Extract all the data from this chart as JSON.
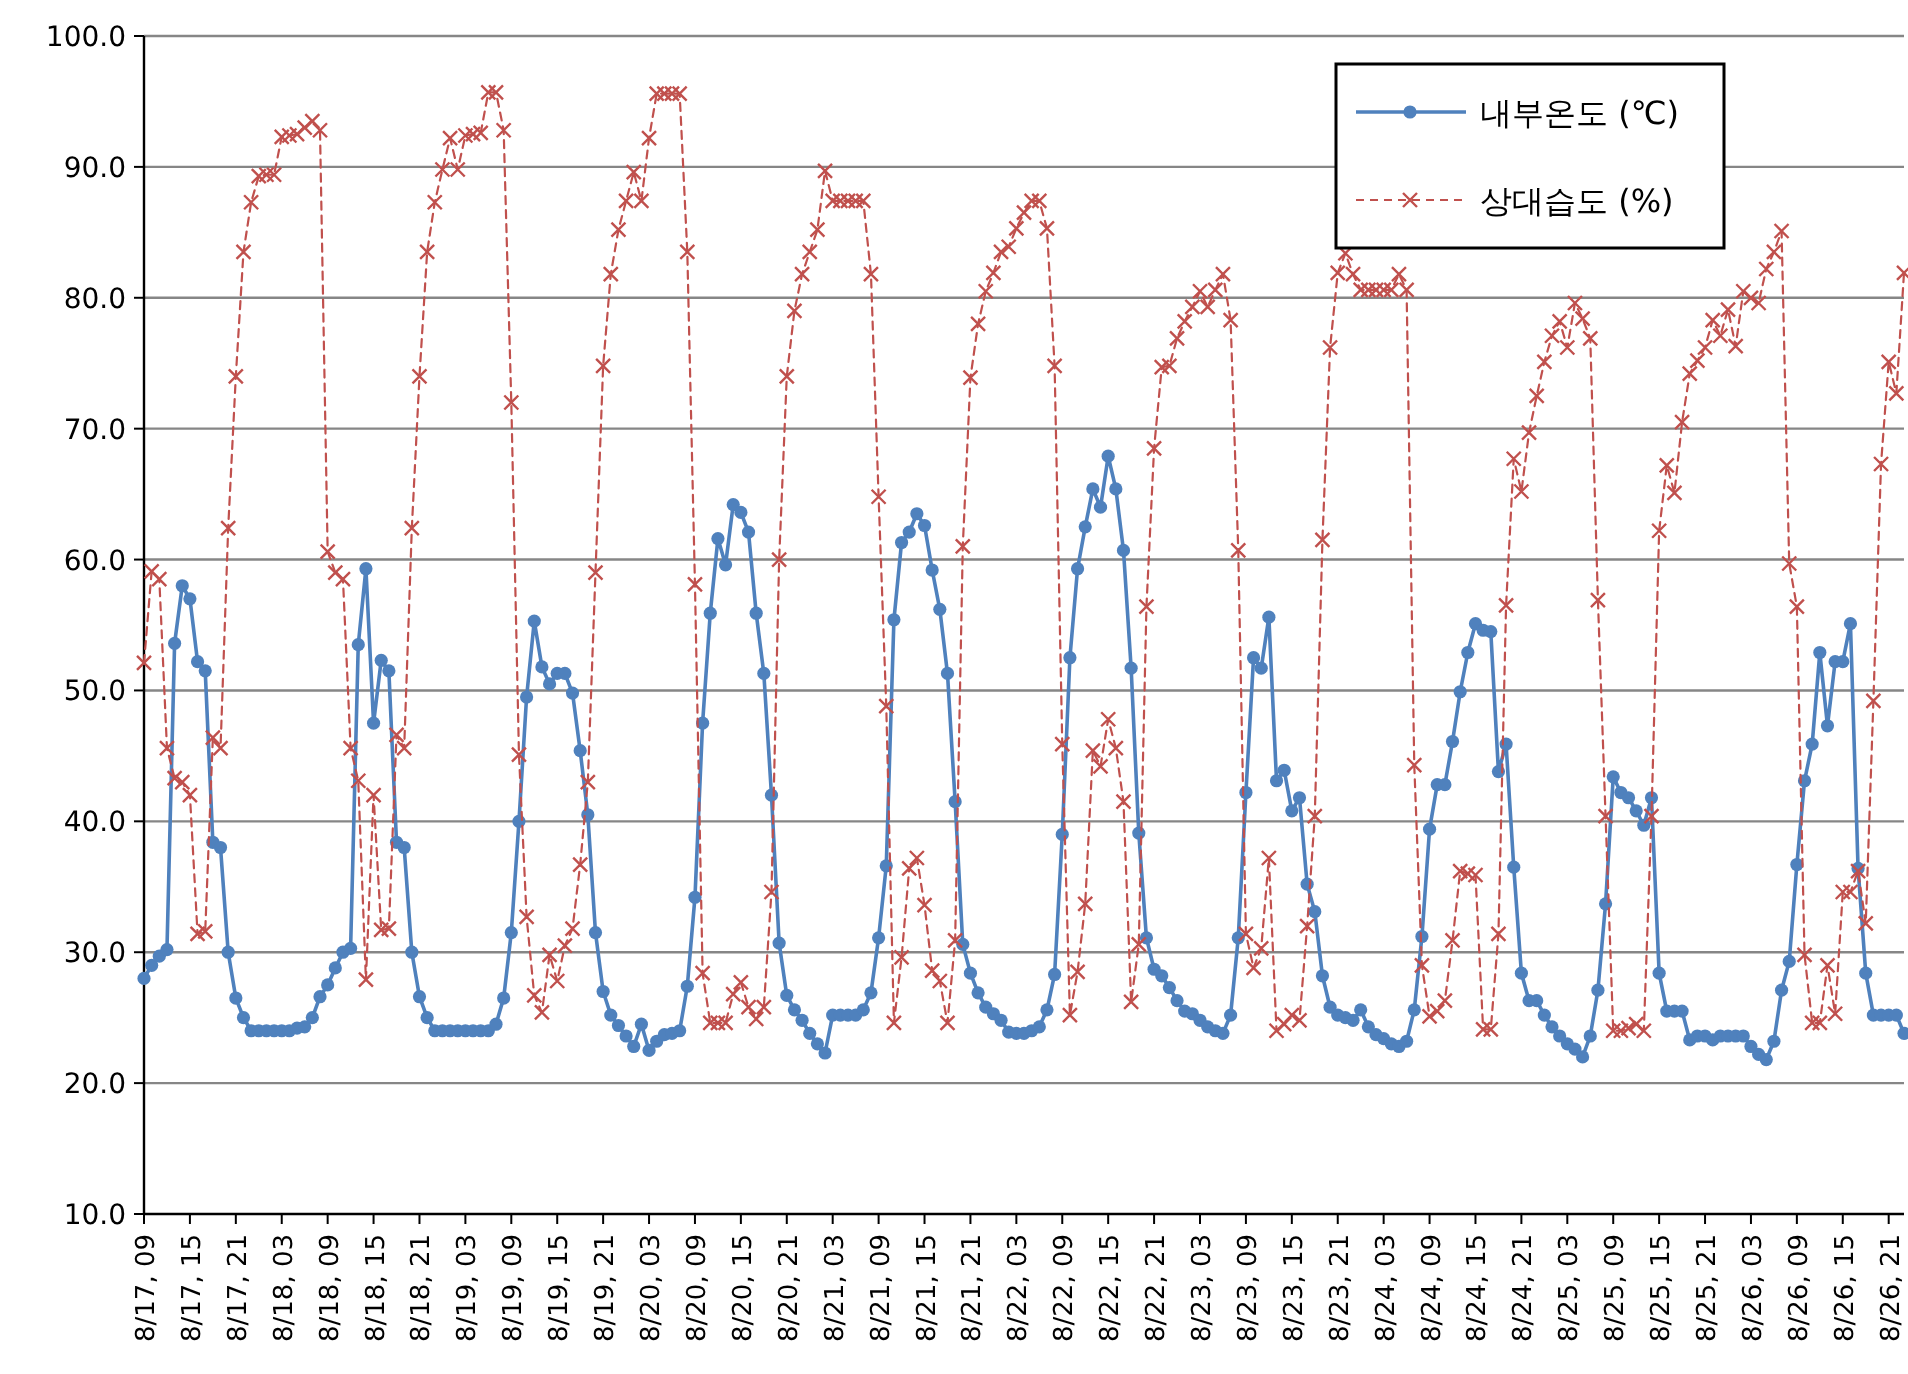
{
  "chart_data": {
    "type": "line",
    "ylim": [
      10,
      100
    ],
    "yticks": [
      {
        "value": 10,
        "label": "10.0"
      },
      {
        "value": 20,
        "label": "20.0"
      },
      {
        "value": 30,
        "label": "30.0"
      },
      {
        "value": 40,
        "label": "40.0"
      },
      {
        "value": 50,
        "label": "50.0"
      },
      {
        "value": 60,
        "label": "60.0"
      },
      {
        "value": 70,
        "label": "70.0"
      },
      {
        "value": 80,
        "label": "80.0"
      },
      {
        "value": 90,
        "label": "90.0"
      },
      {
        "value": 100,
        "label": "100.0"
      }
    ],
    "categories": [
      "8/17, 09",
      null,
      null,
      null,
      null,
      null,
      "8/17, 15",
      null,
      null,
      null,
      null,
      null,
      "8/17, 21",
      null,
      null,
      null,
      null,
      null,
      "8/18, 03",
      null,
      null,
      null,
      null,
      null,
      "8/18, 09",
      null,
      null,
      null,
      null,
      null,
      "8/18, 15",
      null,
      null,
      null,
      null,
      null,
      "8/18, 21",
      null,
      null,
      null,
      null,
      null,
      "8/19, 03",
      null,
      null,
      null,
      null,
      null,
      "8/19, 09",
      null,
      null,
      null,
      null,
      null,
      "8/19, 15",
      null,
      null,
      null,
      null,
      null,
      "8/19, 21",
      null,
      null,
      null,
      null,
      null,
      "8/20, 03",
      null,
      null,
      null,
      null,
      null,
      "8/20, 09",
      null,
      null,
      null,
      null,
      null,
      "8/20, 15",
      null,
      null,
      null,
      null,
      null,
      "8/20, 21",
      null,
      null,
      null,
      null,
      null,
      "8/21, 03",
      null,
      null,
      null,
      null,
      null,
      "8/21, 09",
      null,
      null,
      null,
      null,
      null,
      "8/21, 15",
      null,
      null,
      null,
      null,
      null,
      "8/21, 21",
      null,
      null,
      null,
      null,
      null,
      "8/22, 03",
      null,
      null,
      null,
      null,
      null,
      "8/22, 09",
      null,
      null,
      null,
      null,
      null,
      "8/22, 15",
      null,
      null,
      null,
      null,
      null,
      "8/22, 21",
      null,
      null,
      null,
      null,
      null,
      "8/23, 03",
      null,
      null,
      null,
      null,
      null,
      "8/23, 09",
      null,
      null,
      null,
      null,
      null,
      "8/23, 15",
      null,
      null,
      null,
      null,
      null,
      "8/23, 21",
      null,
      null,
      null,
      null,
      null,
      "8/24, 03",
      null,
      null,
      null,
      null,
      null,
      "8/24, 09",
      null,
      null,
      null,
      null,
      null,
      "8/24, 15",
      null,
      null,
      null,
      null,
      null,
      "8/24, 21",
      null,
      null,
      null,
      null,
      null,
      "8/25, 03",
      null,
      null,
      null,
      null,
      null,
      "8/25, 09",
      null,
      null,
      null,
      null,
      null,
      "8/25, 15",
      null,
      null,
      null,
      null,
      null,
      "8/25, 21",
      null,
      null,
      null,
      null,
      null,
      "8/26, 03",
      null,
      null,
      null,
      null,
      null,
      "8/26, 09",
      null,
      null,
      null,
      null,
      null,
      "8/26, 15",
      null,
      null,
      null,
      null,
      null,
      "8/26, 21",
      null,
      null
    ],
    "grid": "y",
    "legend": "top right",
    "series": [
      {
        "name": "내부온도 (℃)",
        "color": "#4f81bd",
        "marker": "circle",
        "line_style": "solid",
        "values": [
          28.0,
          29.0,
          29.7,
          30.2,
          53.6,
          58.0,
          57.0,
          52.2,
          51.5,
          38.4,
          38.0,
          30.0,
          26.5,
          25.0,
          24.0,
          24.0,
          24.0,
          24.0,
          24.0,
          24.0,
          24.2,
          24.3,
          25.0,
          26.6,
          27.5,
          28.8,
          30.0,
          30.3,
          53.5,
          59.3,
          47.5,
          52.3,
          51.5,
          38.4,
          38.0,
          30.0,
          26.6,
          25.0,
          24.0,
          24.0,
          24.0,
          24.0,
          24.0,
          24.0,
          24.0,
          24.0,
          24.5,
          26.5,
          31.5,
          40.0,
          49.5,
          55.3,
          51.8,
          50.5,
          51.3,
          51.3,
          49.8,
          45.4,
          40.5,
          31.5,
          27.0,
          25.2,
          24.4,
          23.6,
          22.8,
          24.5,
          22.5,
          23.2,
          23.7,
          23.8,
          24.0,
          27.4,
          34.2,
          47.5,
          55.9,
          61.6,
          59.6,
          64.2,
          63.6,
          62.1,
          55.9,
          51.3,
          42.0,
          30.7,
          26.7,
          25.6,
          24.8,
          23.8,
          23.0,
          22.3,
          25.2,
          25.2,
          25.2,
          25.2,
          25.6,
          26.9,
          31.1,
          36.6,
          55.4,
          61.3,
          62.1,
          63.5,
          62.6,
          59.2,
          56.2,
          51.3,
          41.5,
          30.6,
          28.4,
          26.9,
          25.8,
          25.3,
          24.8,
          23.9,
          23.8,
          23.8,
          24.0,
          24.3,
          25.6,
          28.3,
          39.0,
          52.5,
          59.3,
          62.5,
          65.4,
          64.0,
          67.9,
          65.4,
          60.7,
          51.7,
          39.1,
          31.1,
          28.7,
          28.2,
          27.3,
          26.3,
          25.5,
          25.3,
          24.8,
          24.3,
          24.0,
          23.8,
          25.2,
          31.1,
          42.2,
          52.5,
          51.7,
          55.6,
          43.1,
          43.9,
          40.8,
          41.8,
          35.2,
          33.1,
          28.2,
          25.8,
          25.2,
          25.0,
          24.8,
          25.6,
          24.3,
          23.7,
          23.4,
          23.0,
          22.8,
          23.2,
          25.6,
          31.2,
          39.4,
          42.8,
          42.8,
          46.1,
          49.9,
          52.9,
          55.1,
          54.6,
          54.5,
          43.8,
          45.9,
          36.5,
          28.4,
          26.3,
          26.3,
          25.2,
          24.3,
          23.6,
          23.0,
          22.6,
          22.0,
          23.6,
          27.1,
          33.7,
          43.4,
          42.2,
          41.8,
          40.8,
          39.7,
          41.8,
          28.4,
          25.5,
          25.5,
          25.5,
          23.3,
          23.6,
          23.6,
          23.3,
          23.6,
          23.6,
          23.6,
          23.6,
          22.8,
          22.2,
          21.8,
          23.2,
          27.1,
          29.3,
          36.7,
          43.1,
          45.9,
          52.9,
          47.3,
          52.2,
          52.2,
          55.1,
          36.4,
          28.4,
          25.2,
          25.2,
          25.2,
          25.2,
          23.8
        ]
      },
      {
        "name": "상대습도 (%)",
        "color": "#c0504d",
        "marker": "cross",
        "line_style": "dashed",
        "values": [
          52.1,
          59.1,
          58.5,
          45.6,
          43.3,
          43.0,
          42.0,
          31.4,
          31.6,
          46.4,
          45.6,
          62.4,
          74.0,
          83.5,
          87.3,
          89.3,
          89.4,
          89.4,
          92.3,
          92.4,
          92.5,
          93.0,
          93.5,
          92.8,
          60.6,
          59.0,
          58.5,
          45.6,
          43.1,
          27.9,
          42.0,
          31.7,
          31.8,
          46.6,
          45.6,
          62.4,
          74.0,
          83.5,
          87.3,
          89.8,
          92.2,
          89.8,
          92.4,
          92.5,
          92.6,
          95.7,
          95.7,
          92.8,
          72.0,
          45.1,
          32.7,
          26.7,
          25.4,
          29.8,
          27.8,
          30.5,
          31.8,
          36.7,
          43.0,
          59.0,
          74.8,
          81.8,
          85.2,
          87.4,
          89.6,
          87.4,
          92.2,
          95.6,
          95.6,
          95.6,
          95.6,
          83.5,
          58.1,
          28.4,
          24.6,
          24.6,
          24.6,
          26.8,
          27.7,
          25.8,
          24.9,
          25.8,
          34.6,
          60.0,
          74.0,
          79.0,
          81.8,
          83.5,
          85.2,
          89.7,
          87.4,
          87.4,
          87.4,
          87.4,
          87.4,
          81.8,
          64.8,
          48.8,
          24.6,
          29.6,
          36.4,
          37.2,
          33.6,
          28.6,
          27.8,
          24.6,
          30.9,
          61.0,
          73.9,
          78.0,
          80.5,
          81.9,
          83.5,
          83.9,
          85.3,
          86.5,
          87.4,
          87.4,
          85.3,
          74.8,
          45.9,
          25.2,
          28.5,
          33.7,
          45.4,
          44.2,
          47.8,
          45.6,
          41.5,
          26.2,
          30.6,
          56.4,
          68.5,
          74.7,
          74.8,
          76.9,
          78.2,
          79.3,
          80.5,
          79.3,
          80.6,
          81.8,
          78.3,
          60.7,
          31.4,
          28.8,
          30.3,
          37.2,
          24.0,
          24.5,
          25.2,
          24.8,
          32.0,
          40.4,
          61.5,
          76.2,
          81.9,
          83.4,
          81.8,
          80.6,
          80.6,
          80.6,
          80.6,
          80.6,
          81.8,
          80.6,
          44.3,
          29.0,
          25.1,
          25.5,
          26.3,
          30.9,
          36.2,
          36.0,
          35.9,
          24.1,
          24.1,
          31.4,
          56.5,
          67.7,
          65.2,
          69.7,
          72.5,
          75.1,
          77.1,
          78.2,
          76.2,
          79.6,
          78.4,
          76.9,
          56.9,
          40.4,
          24.0,
          24.0,
          24.2,
          24.5,
          24.0,
          40.4,
          62.2,
          67.2,
          65.1,
          70.5,
          74.2,
          75.2,
          76.2,
          78.3,
          77.1,
          79.1,
          76.3,
          80.5,
          80.0,
          79.6,
          82.2,
          83.5,
          85.1,
          59.7,
          56.4,
          29.8,
          24.6,
          24.6,
          29.0,
          25.3,
          34.6,
          34.6,
          36.2,
          32.2,
          49.2,
          67.3,
          75.1,
          72.7,
          81.9
        ]
      }
    ]
  }
}
